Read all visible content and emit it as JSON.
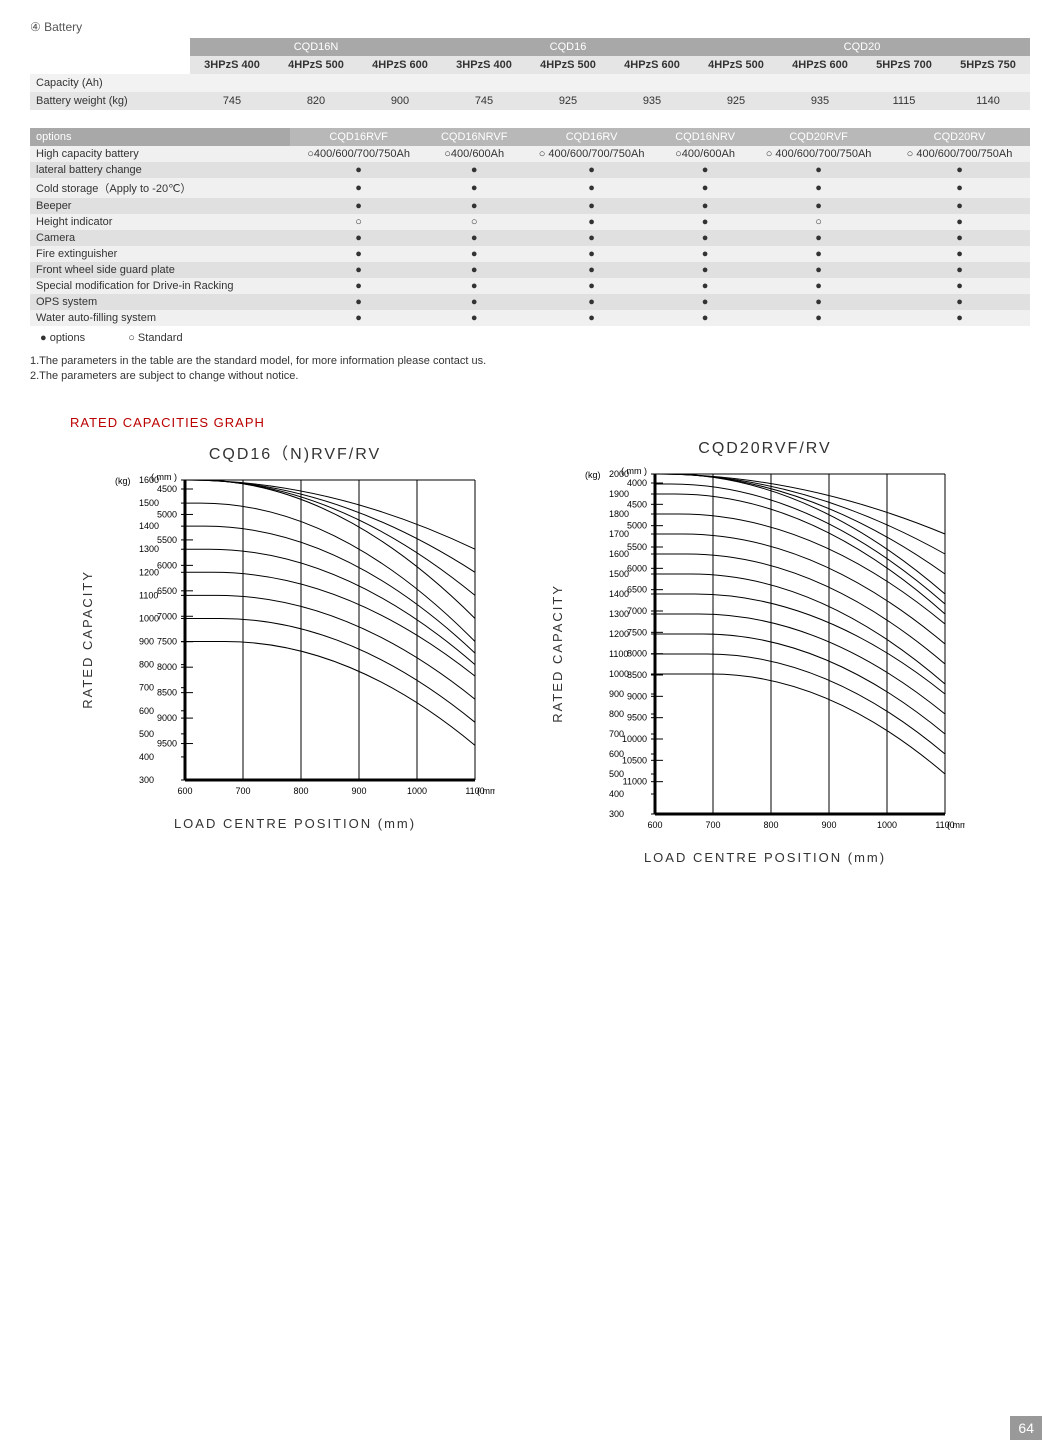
{
  "section_title": "④ Battery",
  "battery_table": {
    "groups": [
      {
        "label": "CQD16N",
        "span": 3
      },
      {
        "label": "CQD16",
        "span": 3
      },
      {
        "label": "CQD20",
        "span": 4
      }
    ],
    "columns": [
      "3HPzS 400",
      "4HPzS 500",
      "4HPzS 600",
      "3HPzS 400",
      "4HPzS 500",
      "4HPzS 600",
      "4HPzS 500",
      "4HPzS 600",
      "5HPzS 700",
      "5HPzS 750"
    ],
    "rows": [
      {
        "label": "Capacity (Ah)",
        "values": [
          "",
          "",
          "",
          "",
          "",
          "",
          "",
          "",
          "",
          ""
        ]
      },
      {
        "label": "Battery weight (kg)",
        "values": [
          "745",
          "820",
          "900",
          "745",
          "925",
          "935",
          "925",
          "935",
          "1115",
          "1140"
        ]
      }
    ]
  },
  "options_table": {
    "header": "options",
    "col_headers": [
      "CQD16RVF",
      "CQD16NRVF",
      "CQD16RV",
      "CQD16NRV",
      "CQD20RVF",
      "CQD20RV"
    ],
    "rows": [
      {
        "label": "High capacity battery",
        "cells": [
          "○400/600/700/750Ah",
          "○400/600Ah",
          "○ 400/600/700/750Ah",
          "○400/600Ah",
          "○ 400/600/700/750Ah",
          "○ 400/600/700/750Ah"
        ]
      },
      {
        "label": "lateral battery change",
        "cells": [
          "●",
          "●",
          "●",
          "●",
          "●",
          "●"
        ]
      },
      {
        "label": "Cold storage（Apply to -20℃）",
        "cells": [
          "●",
          "●",
          "●",
          "●",
          "●",
          "●"
        ]
      },
      {
        "label": "Beeper",
        "cells": [
          "●",
          "●",
          "●",
          "●",
          "●",
          "●"
        ]
      },
      {
        "label": "Height indicator",
        "cells": [
          "○",
          "○",
          "●",
          "●",
          "○",
          "●"
        ]
      },
      {
        "label": "Camera",
        "cells": [
          "●",
          "●",
          "●",
          "●",
          "●",
          "●"
        ]
      },
      {
        "label": "Fire extinguisher",
        "cells": [
          "●",
          "●",
          "●",
          "●",
          "●",
          "●"
        ]
      },
      {
        "label": "Front wheel side guard plate",
        "cells": [
          "●",
          "●",
          "●",
          "●",
          "●",
          "●"
        ]
      },
      {
        "label": "Special modification for Drive-in Racking",
        "cells": [
          "●",
          "●",
          "●",
          "●",
          "●",
          "●"
        ]
      },
      {
        "label": "OPS system",
        "cells": [
          "●",
          "●",
          "●",
          "●",
          "●",
          "●"
        ]
      },
      {
        "label": "Water auto-filling system",
        "cells": [
          "●",
          "●",
          "●",
          "●",
          "●",
          "●"
        ]
      }
    ],
    "legend": {
      "options": "● options",
      "standard": "○ Standard"
    }
  },
  "notes": [
    "1.The parameters in the table are the standard model, for more information please contact us.",
    "2.The parameters are subject to change without notice."
  ],
  "graph_section_title": "RATED CAPACITIES GRAPH",
  "charts": {
    "left": {
      "title": "CQD16（N)RVF/RV",
      "y_unit": "(kg)",
      "x_unit": "( mm )",
      "legend_unit": "( mm )",
      "y_axis_label": "RATED CAPACITY",
      "x_axis_label": "LOAD  CENTRE  POSITION  (mm)",
      "y_ticks": [
        1600,
        1500,
        1400,
        1300,
        1200,
        1100,
        1000,
        900,
        800,
        700,
        600,
        500,
        400,
        300
      ],
      "x_ticks": [
        600,
        700,
        800,
        900,
        1000,
        1100
      ],
      "series_labels": [
        4500,
        5000,
        5500,
        6000,
        6500,
        7000,
        7500,
        8000,
        8500,
        9000,
        9500
      ],
      "series_start_y": [
        1600,
        1600,
        1600,
        1600,
        1500,
        1400,
        1300,
        1200,
        1100,
        1000,
        900
      ],
      "series_end_y": [
        1300,
        1200,
        1100,
        1000,
        900,
        850,
        800,
        750,
        650,
        550,
        450
      ]
    },
    "right": {
      "title": "CQD20RVF/RV",
      "y_unit": "(kg)",
      "x_unit": "( mm )",
      "legend_unit": "( mm )",
      "y_axis_label": "RATED CAPACITY",
      "x_axis_label": "LOAD  CENTRE  POSITION  (mm)",
      "y_ticks": [
        2000,
        1900,
        1800,
        1700,
        1600,
        1500,
        1400,
        1300,
        1200,
        1100,
        1000,
        900,
        800,
        700,
        600,
        500,
        400,
        300
      ],
      "x_ticks": [
        600,
        700,
        800,
        900,
        1000,
        1100
      ],
      "series_labels": [
        4000,
        4500,
        5000,
        5500,
        6000,
        6500,
        7000,
        7500,
        8000,
        8500,
        9000,
        9500,
        10000,
        10500,
        11000
      ],
      "series_start_y": [
        2000,
        2000,
        2000,
        2000,
        1950,
        1900,
        1800,
        1700,
        1600,
        1500,
        1400,
        1300,
        1200,
        1100,
        1000
      ],
      "series_end_y": [
        1700,
        1600,
        1500,
        1400,
        1350,
        1300,
        1250,
        1150,
        1050,
        950,
        900,
        800,
        700,
        600,
        500
      ]
    },
    "style": {
      "line_color": "#000000",
      "grid_color": "#000000",
      "bg_color": "#ffffff",
      "axis_width": 3,
      "line_width": 1,
      "font_size_ticks": 9,
      "font_size_title": 16
    }
  },
  "page_number": "64"
}
